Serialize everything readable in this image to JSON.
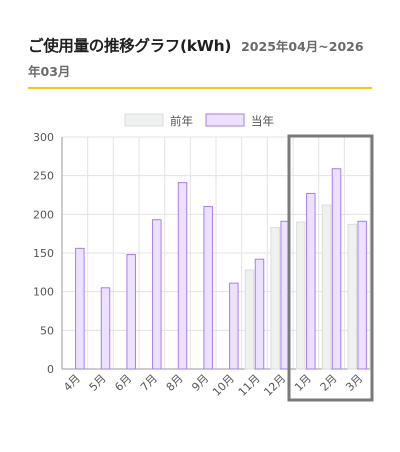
{
  "header": {
    "title": "ご使用量の推移グラフ(kWh)",
    "period": "2025年04月~2026年03月"
  },
  "colors": {
    "accent": "#f3c623",
    "prev_fill": "#eef1ef",
    "prev_stroke": "#d9dedb",
    "curr_fill": "#ece2ff",
    "curr_stroke": "#a77de8",
    "highlight": "#7a7a7a"
  },
  "chart_data": {
    "type": "bar",
    "categories": [
      "4月",
      "5月",
      "6月",
      "7月",
      "8月",
      "9月",
      "10月",
      "11月",
      "12月",
      "1月",
      "2月",
      "3月"
    ],
    "series": [
      {
        "name": "前年",
        "values": [
          null,
          null,
          null,
          null,
          null,
          null,
          null,
          128,
          183,
          190,
          212,
          187
        ]
      },
      {
        "name": "当年",
        "values": [
          156,
          105,
          148,
          193,
          241,
          210,
          111,
          142,
          191,
          227,
          259,
          191
        ]
      }
    ],
    "ylim": [
      0,
      300
    ],
    "yticks": [
      0,
      50,
      100,
      150,
      200,
      250,
      300
    ],
    "grid": true,
    "legend": "top-center",
    "highlight_categories": [
      "1月",
      "2月",
      "3月"
    ]
  }
}
